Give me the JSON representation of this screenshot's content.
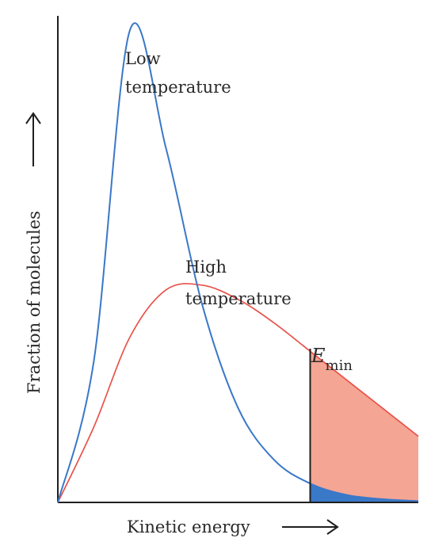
{
  "chart_data": {
    "type": "area",
    "xlabel": "Kinetic energy",
    "ylabel": "Fraction of molecules",
    "grid": false,
    "legend": "none",
    "series": [
      {
        "label_lines": [
          "Low",
          "temperature"
        ],
        "color": "#3a78c8",
        "fill_color": "#3a78c8",
        "x": [
          0,
          0.1,
          0.2,
          0.3,
          0.4,
          0.5,
          0.6,
          0.7,
          0.8,
          0.9,
          1.0
        ],
        "y": [
          0,
          0.3,
          1.0,
          0.75,
          0.42,
          0.2,
          0.09,
          0.04,
          0.016,
          0.007,
          0.003
        ]
      },
      {
        "label_lines": [
          "High",
          "temperature"
        ],
        "color": "#e8534a",
        "fill_color": "#f4a593",
        "x": [
          0,
          0.1,
          0.2,
          0.3,
          0.4,
          0.5,
          0.6,
          0.7,
          0.8,
          0.9,
          1.0
        ],
        "y": [
          0,
          0.16,
          0.35,
          0.45,
          0.46,
          0.43,
          0.38,
          0.32,
          0.26,
          0.2,
          0.14
        ]
      }
    ],
    "threshold": {
      "label": "E",
      "subscript": "min",
      "x": 0.7
    }
  }
}
